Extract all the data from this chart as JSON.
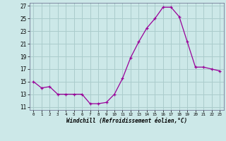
{
  "x": [
    0,
    1,
    2,
    3,
    4,
    5,
    6,
    7,
    8,
    9,
    10,
    11,
    12,
    13,
    14,
    15,
    16,
    17,
    18,
    19,
    20,
    21,
    22,
    23
  ],
  "y": [
    15.0,
    14.0,
    14.2,
    13.0,
    13.0,
    13.0,
    13.0,
    11.5,
    11.5,
    11.7,
    13.0,
    15.5,
    18.8,
    21.3,
    23.5,
    25.0,
    26.8,
    26.8,
    25.3,
    21.3,
    17.3,
    17.3,
    17.0,
    16.7
  ],
  "line_color": "#990099",
  "bg_color": "#cce8e8",
  "grid_color": "#aacccc",
  "xlabel": "Windchill (Refroidissement éolien,°C)",
  "ylabel_ticks": [
    11,
    13,
    15,
    17,
    19,
    21,
    23,
    25,
    27
  ],
  "xtick_labels": [
    "0",
    "1",
    "2",
    "3",
    "4",
    "5",
    "6",
    "7",
    "8",
    "9",
    "10",
    "11",
    "12",
    "13",
    "14",
    "15",
    "16",
    "17",
    "18",
    "19",
    "20",
    "21",
    "22",
    "23"
  ],
  "xlim": [
    -0.5,
    23.5
  ],
  "ylim": [
    10.5,
    27.5
  ]
}
